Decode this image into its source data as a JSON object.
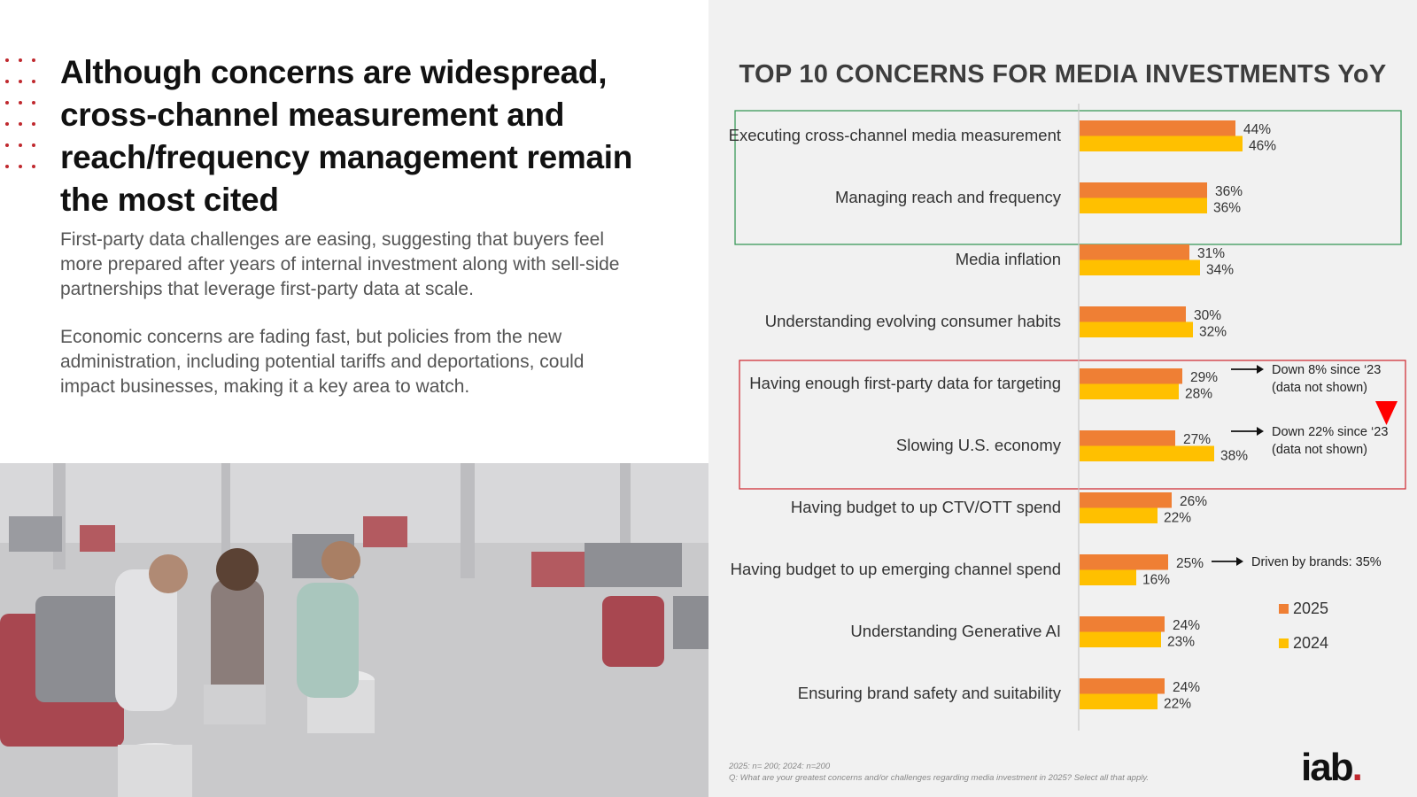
{
  "headline": "Although concerns are widespread, cross-channel measurement and reach/frequency management remain the most cited",
  "paragraphs": [
    "First-party data challenges are easing, suggesting that buyers feel more prepared after years of internal investment along with sell-side partnerships that leverage first-party data at scale.",
    "Economic concerns are fading fast, but policies from the new administration, including potential tariffs and deportations, could impact businesses, making it a key area to watch."
  ],
  "colors": {
    "y2025": "#ef7f34",
    "y2024": "#ffc000",
    "accent": "#c0282e",
    "green_box": "#3b9a5a",
    "red_box": "#d0323a"
  },
  "chart_data": {
    "type": "bar",
    "orientation": "horizontal",
    "title": "TOP 10 CONCERNS FOR MEDIA INVESTMENTS YoY",
    "categories": [
      "Executing cross-channel media measurement",
      "Managing reach and frequency",
      "Media inflation",
      "Understanding evolving consumer habits",
      "Having enough first-party data for targeting",
      "Slowing U.S. economy",
      "Having budget to up CTV/OTT spend",
      "Having budget to up emerging channel spend",
      "Understanding Generative AI",
      "Ensuring brand safety and suitability"
    ],
    "series": [
      {
        "name": "2025",
        "values": [
          44,
          36,
          31,
          30,
          29,
          27,
          26,
          25,
          24,
          24
        ]
      },
      {
        "name": "2024",
        "values": [
          46,
          36,
          34,
          32,
          28,
          38,
          22,
          16,
          23,
          22
        ]
      }
    ],
    "value_suffix": "%",
    "annotations": [
      {
        "category_index": 4,
        "text_lines": [
          "Down 8% since ‘23",
          "(data not shown)"
        ]
      },
      {
        "category_index": 5,
        "text_lines": [
          "Down 22% since ‘23",
          "(data not shown)"
        ]
      },
      {
        "category_index": 7,
        "text_lines": [
          "Driven by brands: 35%"
        ]
      }
    ],
    "highlight_groups": [
      {
        "style": "green",
        "category_indices": [
          0,
          1
        ]
      },
      {
        "style": "red",
        "category_indices": [
          4,
          5
        ]
      }
    ],
    "legend": [
      "2025",
      "2024"
    ]
  },
  "footnote": {
    "sample": "2025: n= 200; 2024: n=200",
    "question": "Q: What are your greatest concerns and/or challenges regarding media investment in 2025? Select all that apply."
  },
  "logo": {
    "text": "iab",
    "dot": "."
  }
}
